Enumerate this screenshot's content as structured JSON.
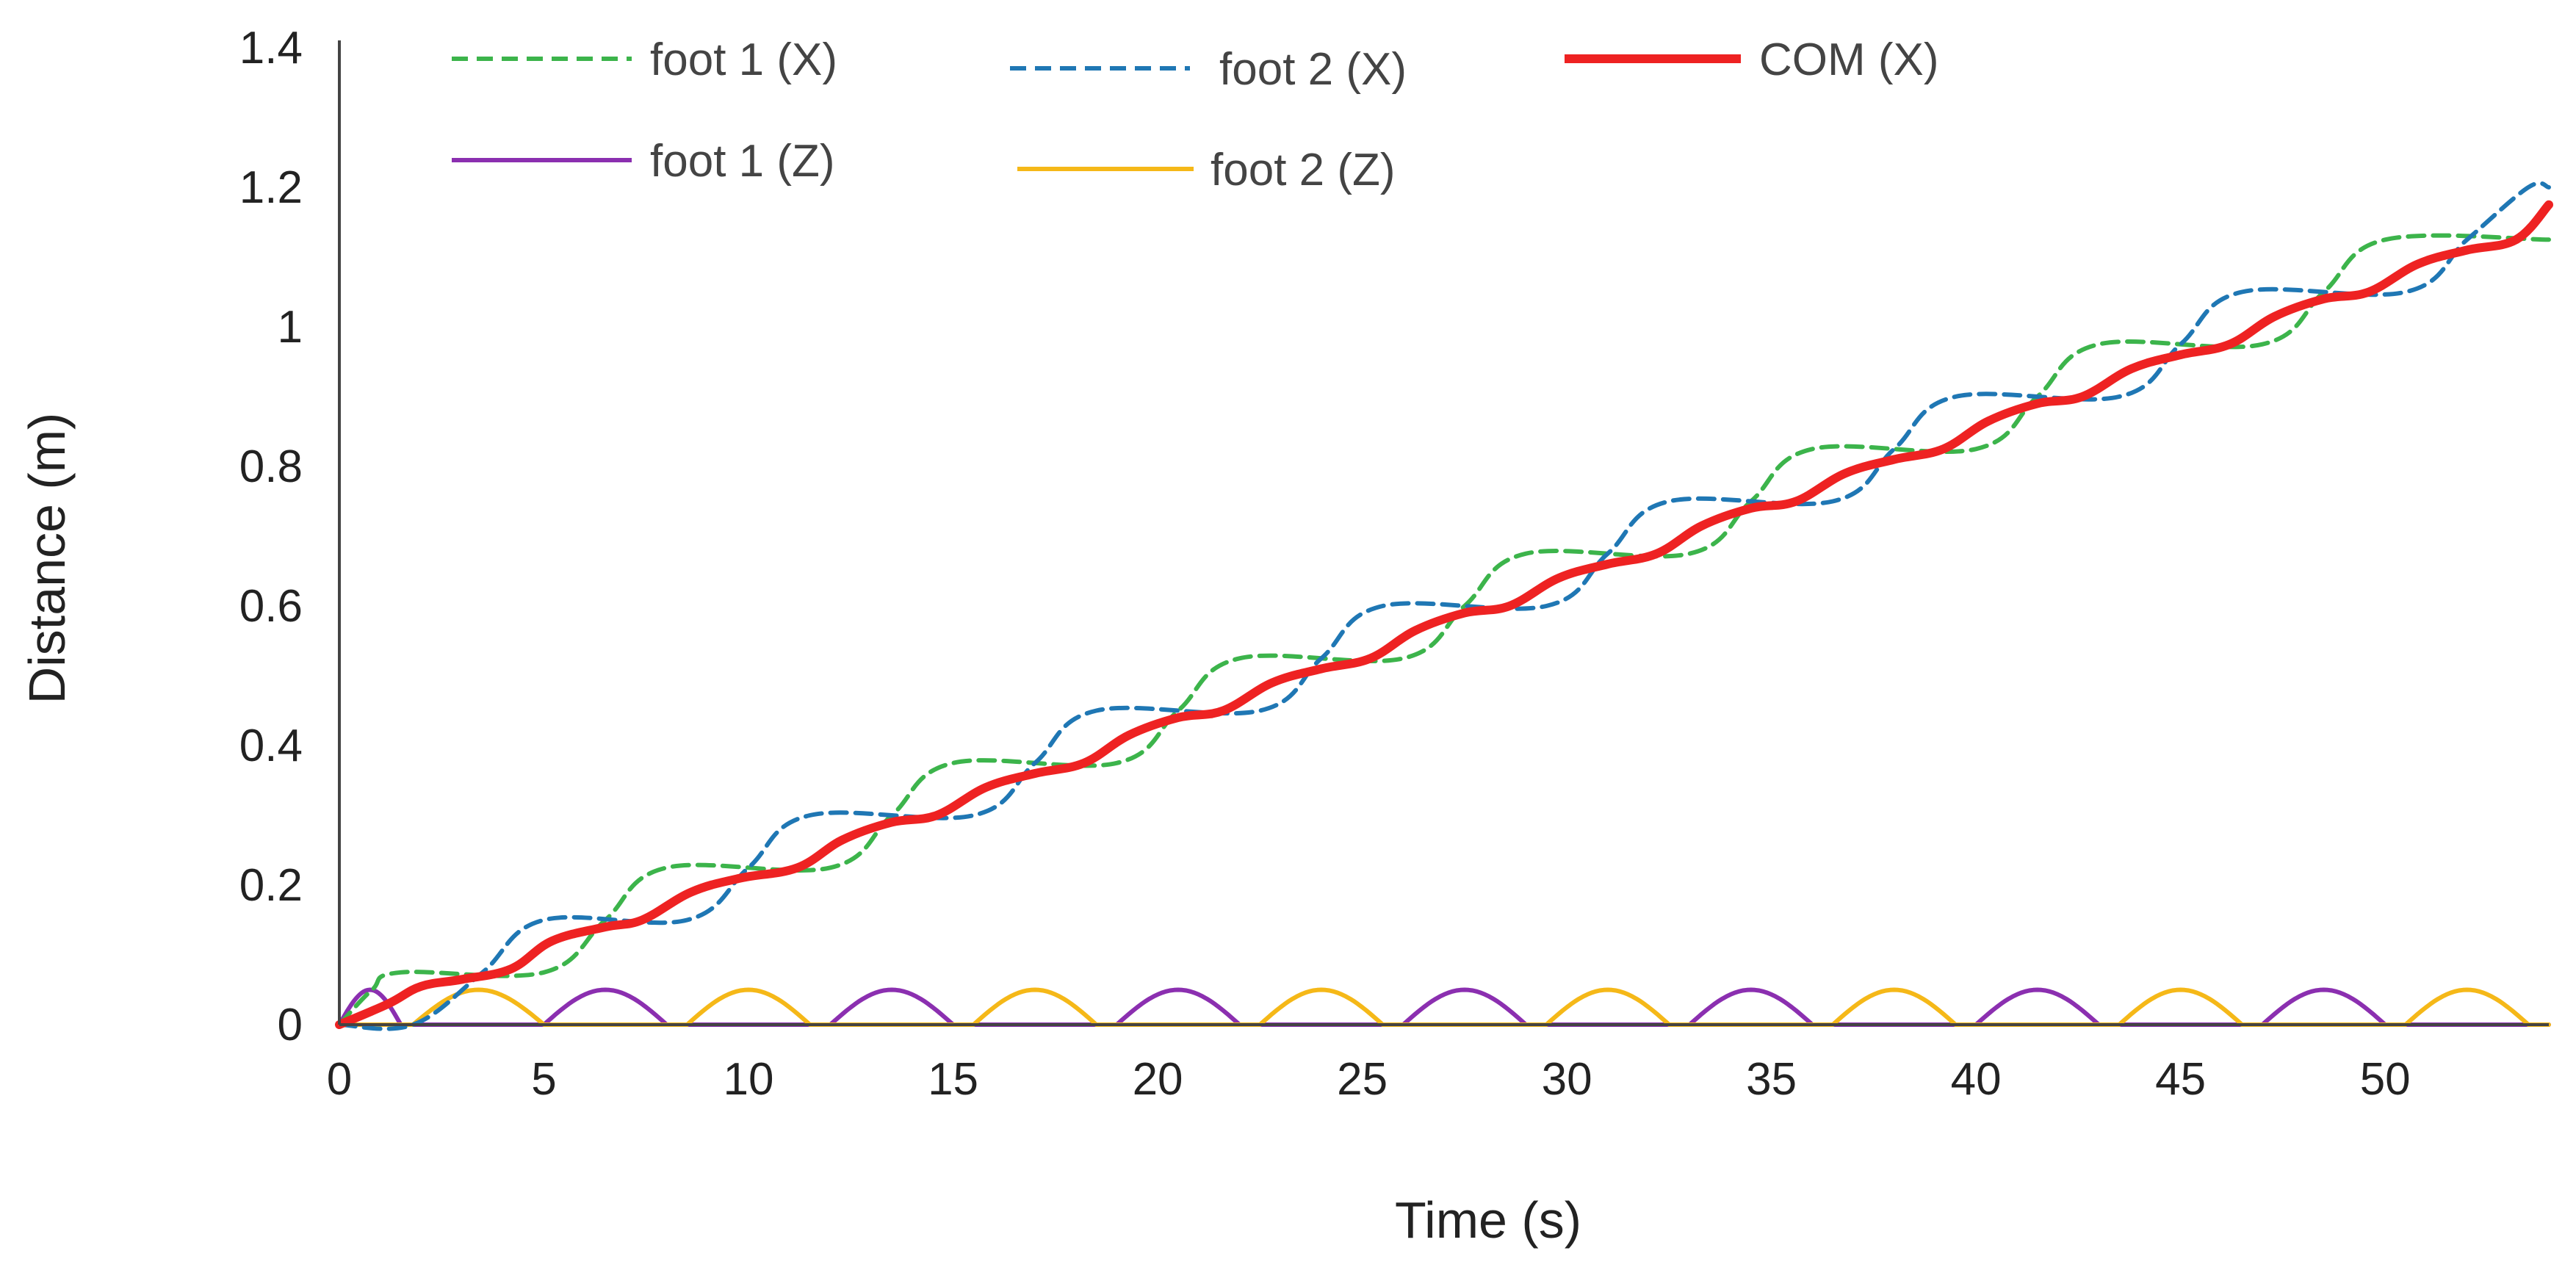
{
  "chart_data": {
    "type": "line",
    "xlabel": "Time (s)",
    "ylabel": "Distance (m)",
    "xlim": [
      0,
      54
    ],
    "ylim": [
      0,
      1.4
    ],
    "x_ticks": [
      "0",
      "5",
      "10",
      "15",
      "20",
      "25",
      "30",
      "35",
      "40",
      "45",
      "50"
    ],
    "y_ticks": [
      "0",
      "0.2",
      "0.4",
      "0.6",
      "0.8",
      "1",
      "1.2",
      "1.4"
    ],
    "grid": false,
    "legend": {
      "placement": "top-left"
    },
    "series": [
      {
        "name": "foot 1 (X)",
        "color": "#3cb44b",
        "dash": "dashed",
        "x": [
          0,
          0.8,
          1.5,
          5.0,
          6.5,
          8.0,
          12.0,
          13.5,
          15.0,
          19.0,
          20.5,
          22.0,
          26.0,
          27.5,
          29.0,
          33.0,
          34.5,
          36.0,
          40.0,
          41.5,
          43.0,
          47.0,
          48.5,
          50.0,
          54.0
        ],
        "y": [
          0,
          0.05,
          0.075,
          0.075,
          0.15,
          0.225,
          0.225,
          0.3,
          0.375,
          0.375,
          0.45,
          0.525,
          0.525,
          0.6,
          0.675,
          0.675,
          0.75,
          0.825,
          0.825,
          0.9,
          0.975,
          0.975,
          1.05,
          1.125,
          1.125
        ]
      },
      {
        "name": "foot 2 (X)",
        "color": "#1f77b4",
        "dash": "dashed",
        "x": [
          0,
          1.8,
          3.5,
          5.0,
          8.5,
          10.0,
          11.5,
          15.5,
          17.0,
          18.5,
          22.5,
          24.0,
          25.5,
          29.5,
          31.0,
          32.5,
          36.5,
          38.0,
          39.5,
          43.5,
          45.0,
          46.5,
          50.5,
          52.0,
          53.5,
          54.0
        ],
        "y": [
          0,
          0,
          0.075,
          0.15,
          0.15,
          0.225,
          0.3,
          0.3,
          0.375,
          0.45,
          0.45,
          0.525,
          0.6,
          0.6,
          0.675,
          0.75,
          0.75,
          0.825,
          0.9,
          0.9,
          0.975,
          1.05,
          1.05,
          1.125,
          1.2,
          1.2
        ]
      },
      {
        "name": "COM (X)",
        "color": "#ee2222",
        "dash": "solid",
        "x": [
          0,
          1.2,
          2.0,
          3.0,
          4.2,
          5.2,
          6.5,
          7.4,
          8.6,
          9.8,
          11.2,
          12.3,
          13.5,
          14.6,
          15.8,
          17.0,
          18.2,
          19.3,
          20.5,
          21.6,
          22.8,
          24.0,
          25.2,
          26.3,
          27.5,
          28.6,
          29.8,
          31.0,
          32.2,
          33.3,
          34.5,
          35.6,
          36.8,
          38.0,
          39.2,
          40.3,
          41.5,
          42.6,
          43.8,
          45.0,
          46.2,
          47.3,
          48.5,
          49.6,
          50.8,
          52.0,
          53.2,
          54.0
        ],
        "y": [
          0,
          0.03,
          0.055,
          0.065,
          0.08,
          0.12,
          0.14,
          0.15,
          0.19,
          0.21,
          0.225,
          0.265,
          0.29,
          0.3,
          0.34,
          0.36,
          0.375,
          0.415,
          0.44,
          0.45,
          0.49,
          0.51,
          0.525,
          0.565,
          0.59,
          0.6,
          0.64,
          0.66,
          0.675,
          0.715,
          0.74,
          0.75,
          0.79,
          0.81,
          0.825,
          0.865,
          0.89,
          0.9,
          0.94,
          0.96,
          0.975,
          1.015,
          1.04,
          1.05,
          1.09,
          1.11,
          1.125,
          1.175
        ]
      },
      {
        "name": "foot 1 (Z)",
        "color": "#8b2fb0",
        "dash": "solid",
        "arch_height": 0.05,
        "swing_intervals": [
          [
            0,
            1.5
          ],
          [
            5.0,
            8.0
          ],
          [
            12.0,
            15.0
          ],
          [
            19.0,
            22.0
          ],
          [
            26.0,
            29.0
          ],
          [
            33.0,
            36.0
          ],
          [
            40.0,
            43.0
          ],
          [
            47.0,
            50.0
          ]
        ]
      },
      {
        "name": "foot 2 (Z)",
        "color": "#f5b818",
        "dash": "solid",
        "arch_height": 0.05,
        "swing_intervals": [
          [
            1.8,
            5.0
          ],
          [
            8.5,
            11.5
          ],
          [
            15.5,
            18.5
          ],
          [
            22.5,
            25.5
          ],
          [
            29.5,
            32.5
          ],
          [
            36.5,
            39.5
          ],
          [
            43.5,
            46.5
          ],
          [
            50.5,
            53.5
          ]
        ]
      }
    ]
  }
}
